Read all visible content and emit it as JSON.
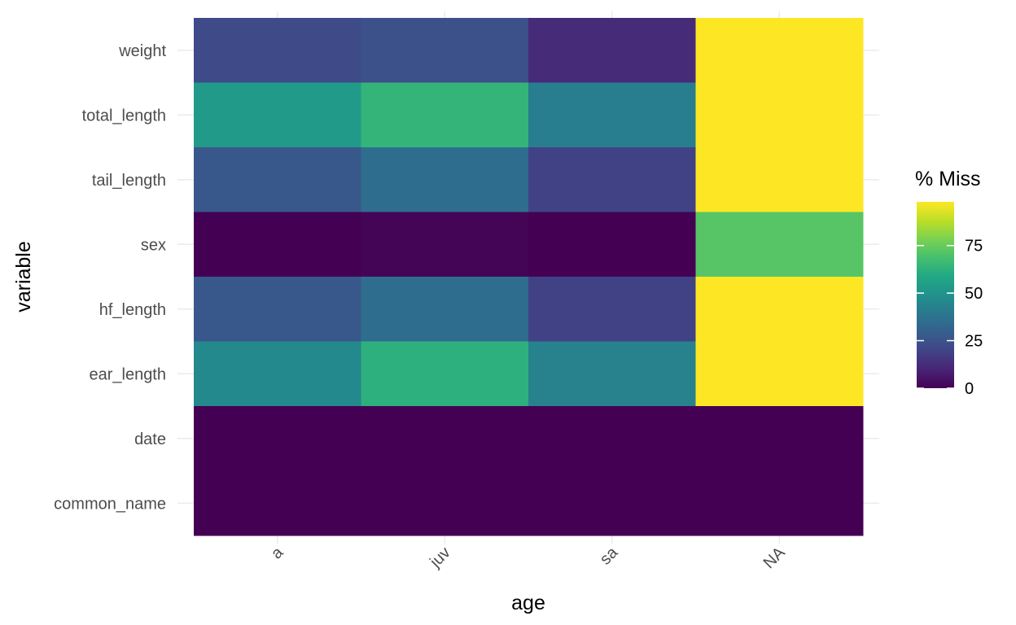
{
  "chart_data": {
    "type": "heatmap",
    "title": "",
    "xlabel": "age",
    "ylabel": "variable",
    "x_categories": [
      "a",
      "juv",
      "sa",
      "NA"
    ],
    "y_categories": [
      "weight",
      "total_length",
      "tail_length",
      "sex",
      "hf_length",
      "ear_length",
      "date",
      "common_name"
    ],
    "values": [
      [
        22,
        24,
        12,
        98
      ],
      [
        53,
        64,
        41,
        98
      ],
      [
        27,
        35,
        19,
        98
      ],
      [
        0,
        1,
        0,
        72
      ],
      [
        27,
        35,
        19,
        98
      ],
      [
        46,
        62,
        43,
        98
      ],
      [
        0,
        0,
        0,
        0
      ],
      [
        0,
        0,
        0,
        0
      ]
    ],
    "legend": {
      "title": "% Miss",
      "ticks": [
        0,
        25,
        50,
        75
      ],
      "range": [
        0,
        98
      ],
      "placement": "right",
      "colormap": "viridis"
    },
    "grid": true
  }
}
